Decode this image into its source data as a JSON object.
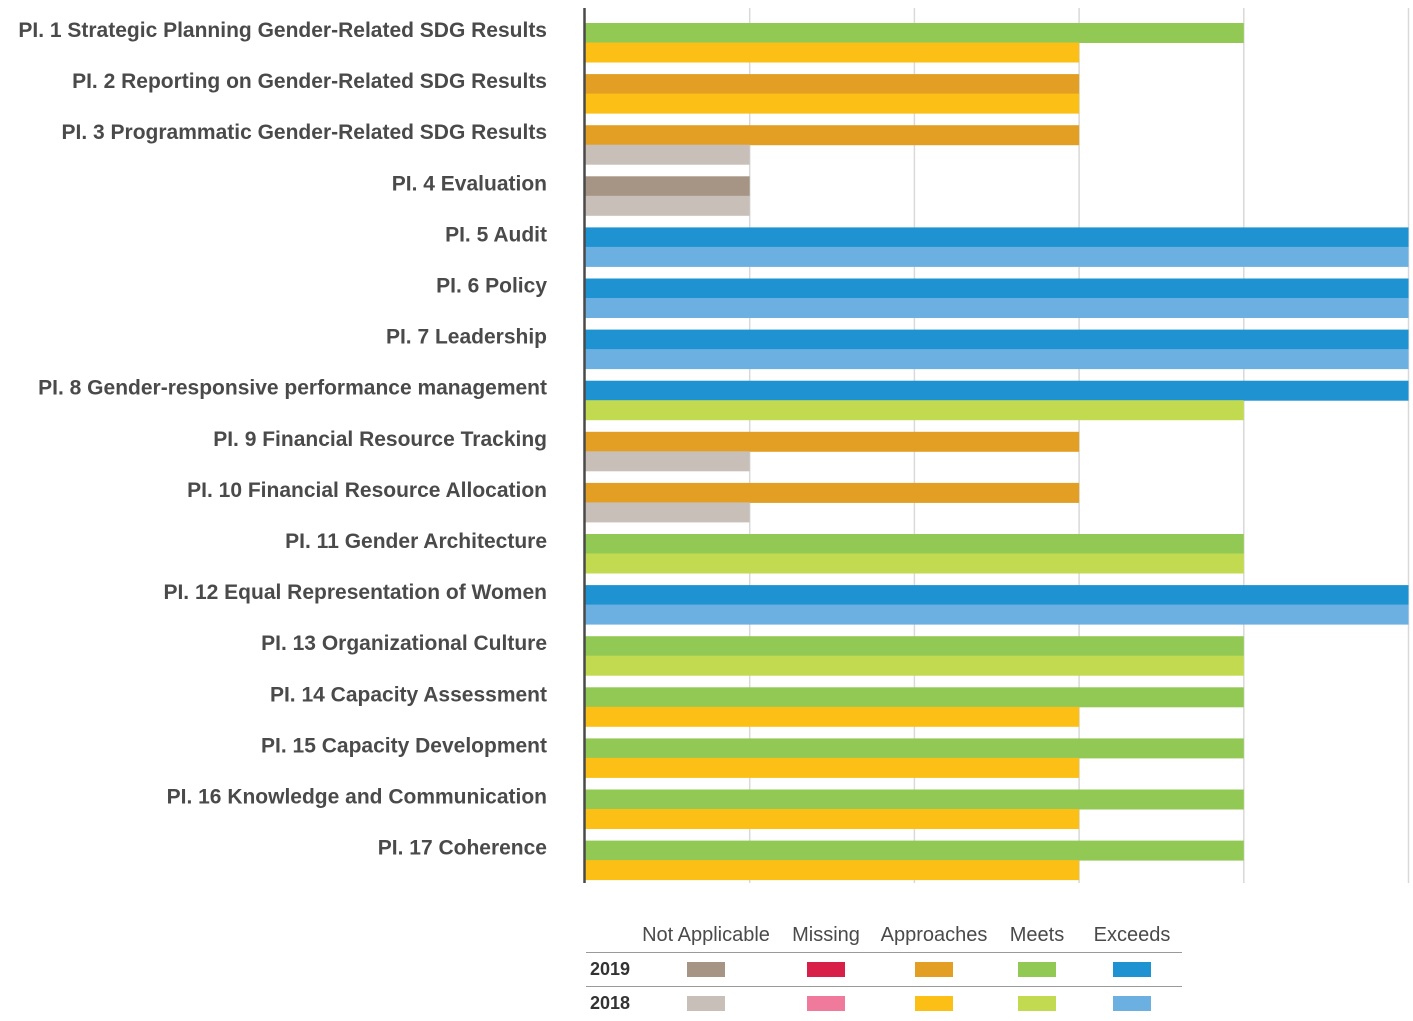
{
  "chart_data": {
    "type": "bar",
    "orientation": "horizontal",
    "levels": [
      "Not Applicable",
      "Missing",
      "Approaches",
      "Meets",
      "Exceeds"
    ],
    "categories": [
      "PI. 1 Strategic Planning Gender-Related SDG Results",
      "PI. 2 Reporting on Gender-Related SDG Results",
      "PI. 3 Programmatic Gender-Related SDG Results",
      "PI. 4 Evaluation",
      "PI. 5 Audit",
      "PI. 6 Policy",
      "PI. 7 Leadership",
      "PI. 8  Gender-responsive performance management",
      "PI. 9 Financial Resource Tracking",
      "PI. 10 Financial Resource Allocation",
      "PI. 11 Gender Architecture",
      "PI. 12 Equal Representation of Women",
      "PI. 13 Organizational Culture",
      "PI. 14 Capacity Assessment",
      "PI. 15 Capacity Development",
      "PI. 16 Knowledge and Communication",
      "PI. 17 Coherence"
    ],
    "series": [
      {
        "name": "2019",
        "values": [
          "Meets",
          "Approaches",
          "Approaches",
          "Not Applicable",
          "Exceeds",
          "Exceeds",
          "Exceeds",
          "Exceeds",
          "Approaches",
          "Approaches",
          "Meets",
          "Exceeds",
          "Meets",
          "Meets",
          "Meets",
          "Meets",
          "Meets"
        ]
      },
      {
        "name": "2018",
        "values": [
          "Approaches",
          "Approaches",
          "Not Applicable",
          "Not Applicable",
          "Exceeds",
          "Exceeds",
          "Exceeds",
          "Meets",
          "Not Applicable",
          "Not Applicable",
          "Meets",
          "Exceeds",
          "Meets",
          "Approaches",
          "Approaches",
          "Approaches",
          "Approaches"
        ]
      }
    ],
    "grid": true,
    "legend_position": "bottom",
    "colors": {
      "2019": {
        "Not Applicable": "#a69584",
        "Missing": "#d71f48",
        "Approaches": "#e29f23",
        "Meets": "#92c955",
        "Exceeds": "#1f93d2"
      },
      "2018": {
        "Not Applicable": "#c8bfb8",
        "Missing": "#ef7a9b",
        "Approaches": "#fbbf16",
        "Meets": "#c2da4f",
        "Exceeds": "#6cb0e1"
      }
    }
  },
  "legend": {
    "headers": [
      "Not Applicable",
      "Missing",
      "Approaches",
      "Meets",
      "Exceeds"
    ],
    "rows": [
      "2019",
      "2018"
    ]
  }
}
